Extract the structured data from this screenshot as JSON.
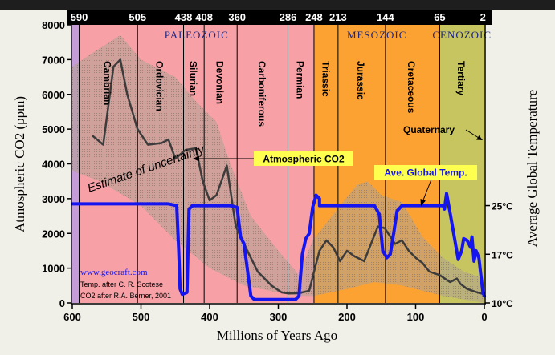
{
  "chart_data": {
    "type": "line",
    "x_label": "Millions of Years Ago",
    "y_label_left": "Atmospheric CO2 (ppm)",
    "y_label_right": "Average Global Temperature",
    "x_range": [
      600,
      0
    ],
    "y_range": [
      0,
      8000
    ],
    "x_ticks": [
      600,
      500,
      400,
      300,
      200,
      100,
      0
    ],
    "y_ticks": [
      0,
      1000,
      2000,
      3000,
      4000,
      5000,
      6000,
      7000,
      8000
    ],
    "temp_ticks": [
      {
        "label": "10°C",
        "ppm_equiv": 0
      },
      {
        "label": "17°C",
        "ppm_equiv": 1400
      },
      {
        "label": "25°C",
        "ppm_equiv": 2800
      }
    ],
    "top_ticks": [
      {
        "label": "590",
        "x": 590
      },
      {
        "label": "505",
        "x": 505
      },
      {
        "label": "438",
        "x": 438
      },
      {
        "label": "408",
        "x": 408
      },
      {
        "label": "360",
        "x": 360
      },
      {
        "label": "286",
        "x": 286
      },
      {
        "label": "248",
        "x": 248
      },
      {
        "label": "213",
        "x": 213
      },
      {
        "label": "144",
        "x": 144
      },
      {
        "label": "65",
        "x": 65
      },
      {
        "label": "2",
        "x": 2
      }
    ],
    "eras": [
      {
        "name": "PALEOZOIC",
        "from": 590,
        "to": 248,
        "color": "#f7a0a6"
      },
      {
        "name": "MESOZOIC",
        "from": 248,
        "to": 65,
        "color": "#fba232"
      },
      {
        "name": "CENOZOIC",
        "from": 65,
        "to": 0,
        "color": "#c6c55f"
      }
    ],
    "precambrian_color": "#c59cd8",
    "periods": [
      {
        "name": "Cambrian",
        "mid": 548
      },
      {
        "name": "Ordovician",
        "mid": 472
      },
      {
        "name": "Silurian",
        "mid": 423
      },
      {
        "name": "Devonian",
        "mid": 384
      },
      {
        "name": "Carboniferous",
        "mid": 323
      },
      {
        "name": "Permian",
        "mid": 267
      },
      {
        "name": "Triassic",
        "mid": 230
      },
      {
        "name": "Jurassic",
        "mid": 179
      },
      {
        "name": "Cretaceous",
        "mid": 105
      },
      {
        "name": "Tertiary",
        "mid": 33
      }
    ],
    "series": [
      {
        "name": "Atmospheric CO2",
        "color": "#3c3c3c",
        "points": [
          [
            570,
            4800
          ],
          [
            555,
            4550
          ],
          [
            540,
            6800
          ],
          [
            530,
            7000
          ],
          [
            520,
            6000
          ],
          [
            505,
            5000
          ],
          [
            490,
            4550
          ],
          [
            470,
            4600
          ],
          [
            460,
            4700
          ],
          [
            450,
            4150
          ],
          [
            435,
            4400
          ],
          [
            420,
            4450
          ],
          [
            410,
            3500
          ],
          [
            400,
            2950
          ],
          [
            390,
            3100
          ],
          [
            375,
            3950
          ],
          [
            362,
            2200
          ],
          [
            345,
            1500
          ],
          [
            330,
            900
          ],
          [
            310,
            500
          ],
          [
            295,
            300
          ],
          [
            285,
            270
          ],
          [
            270,
            280
          ],
          [
            255,
            350
          ],
          [
            248,
            900
          ],
          [
            240,
            1500
          ],
          [
            230,
            1800
          ],
          [
            220,
            1600
          ],
          [
            210,
            1200
          ],
          [
            200,
            1500
          ],
          [
            190,
            1350
          ],
          [
            175,
            1200
          ],
          [
            165,
            1700
          ],
          [
            155,
            2200
          ],
          [
            145,
            2150
          ],
          [
            140,
            2000
          ],
          [
            130,
            1700
          ],
          [
            120,
            1800
          ],
          [
            110,
            1500
          ],
          [
            100,
            1300
          ],
          [
            90,
            1150
          ],
          [
            80,
            900
          ],
          [
            65,
            800
          ],
          [
            50,
            600
          ],
          [
            40,
            700
          ],
          [
            35,
            550
          ],
          [
            25,
            400
          ],
          [
            10,
            300
          ],
          [
            0,
            250
          ]
        ]
      },
      {
        "name": "Ave. Global Temp.",
        "color": "#1515f0",
        "points": [
          [
            600,
            2850
          ],
          [
            460,
            2850
          ],
          [
            448,
            2800
          ],
          [
            445,
            1500
          ],
          [
            443,
            400
          ],
          [
            440,
            250
          ],
          [
            433,
            300
          ],
          [
            430,
            2700
          ],
          [
            425,
            2800
          ],
          [
            370,
            2800
          ],
          [
            360,
            2750
          ],
          [
            355,
            1900
          ],
          [
            350,
            1700
          ],
          [
            340,
            200
          ],
          [
            335,
            100
          ],
          [
            300,
            100
          ],
          [
            275,
            100
          ],
          [
            270,
            200
          ],
          [
            265,
            1400
          ],
          [
            260,
            1850
          ],
          [
            255,
            2000
          ],
          [
            250,
            2750
          ],
          [
            245,
            3100
          ],
          [
            240,
            3000
          ],
          [
            240,
            2800
          ],
          [
            160,
            2800
          ],
          [
            153,
            2550
          ],
          [
            148,
            1500
          ],
          [
            142,
            1300
          ],
          [
            137,
            1400
          ],
          [
            132,
            2000
          ],
          [
            127,
            2650
          ],
          [
            120,
            2800
          ],
          [
            90,
            2800
          ],
          [
            60,
            2800
          ],
          [
            58,
            2700
          ],
          [
            55,
            3150
          ],
          [
            50,
            2600
          ],
          [
            38,
            1250
          ],
          [
            33,
            1500
          ],
          [
            30,
            1850
          ],
          [
            25,
            1800
          ],
          [
            20,
            1600
          ],
          [
            18,
            1900
          ],
          [
            15,
            1200
          ],
          [
            12,
            1500
          ],
          [
            8,
            1300
          ],
          [
            5,
            800
          ],
          [
            2,
            300
          ],
          [
            0,
            200
          ]
        ]
      }
    ],
    "uncertainty_band": {
      "upper": [
        [
          600,
          6800
        ],
        [
          570,
          7200
        ],
        [
          530,
          7700
        ],
        [
          500,
          7000
        ],
        [
          450,
          6500
        ],
        [
          420,
          5800
        ],
        [
          390,
          5200
        ],
        [
          370,
          4000
        ],
        [
          340,
          2500
        ],
        [
          300,
          1500
        ],
        [
          270,
          800
        ],
        [
          250,
          1800
        ],
        [
          210,
          2800
        ],
        [
          185,
          3400
        ],
        [
          170,
          3500
        ],
        [
          150,
          3100
        ],
        [
          120,
          2900
        ],
        [
          90,
          1900
        ],
        [
          60,
          1300
        ],
        [
          30,
          900
        ],
        [
          0,
          700
        ]
      ],
      "lower": [
        [
          0,
          0
        ],
        [
          60,
          200
        ],
        [
          120,
          500
        ],
        [
          160,
          600
        ],
        [
          200,
          400
        ],
        [
          248,
          200
        ],
        [
          270,
          200
        ],
        [
          300,
          300
        ],
        [
          350,
          500
        ],
        [
          400,
          1000
        ],
        [
          450,
          1800
        ],
        [
          500,
          2800
        ],
        [
          560,
          3500
        ],
        [
          600,
          3800
        ]
      ]
    },
    "annotations": {
      "uncertainty": "Estimate of uncertainty",
      "co2_callout": "Atmospheric CO2",
      "temp_callout": "Ave. Global Temp.",
      "quaternary": "Quaternary",
      "credit_url": "www.geocraft.com",
      "credit_temp": "Temp. after C. R. Scotese",
      "credit_co2": "CO2 after R.A. Berner, 2001"
    }
  }
}
